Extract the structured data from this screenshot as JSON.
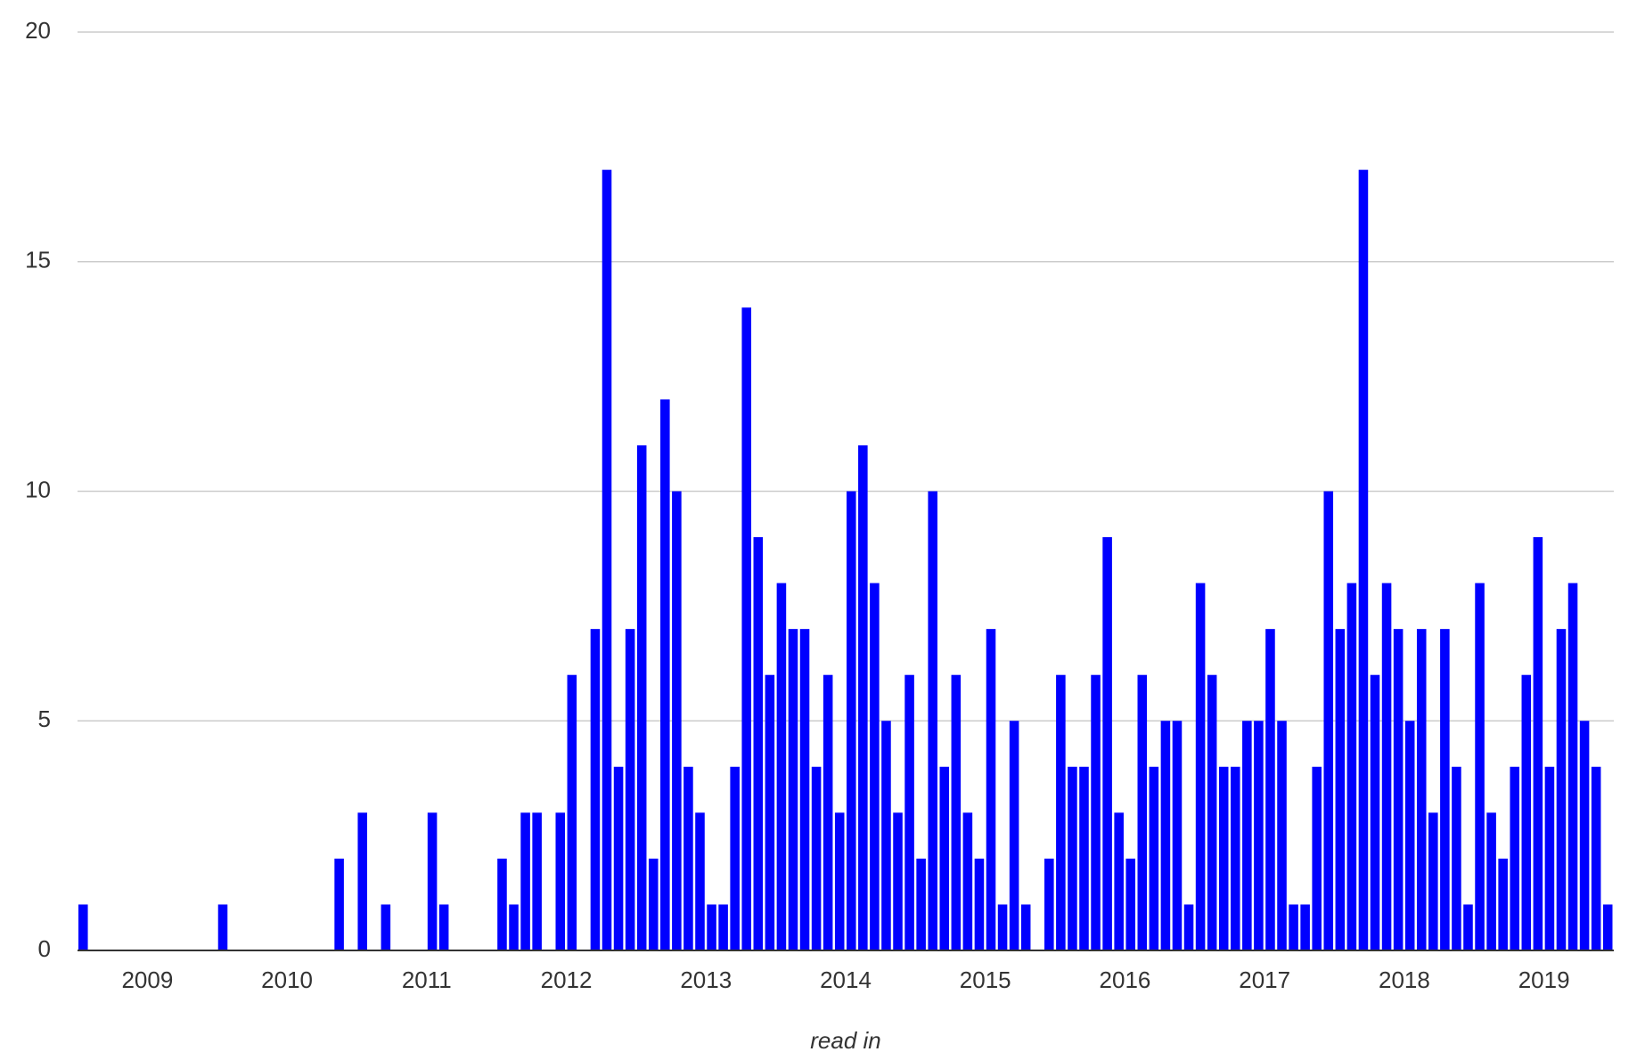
{
  "chart_data": {
    "type": "bar",
    "x_label": "read in",
    "color": "#0000ff",
    "grid": true,
    "categories": [
      null,
      null,
      null,
      null,
      null,
      null,
      null,
      null,
      null,
      null,
      null,
      null,
      null,
      null,
      null,
      null,
      null,
      null,
      null,
      null,
      null,
      null,
      null,
      null,
      null,
      null,
      null,
      null,
      null,
      null,
      null,
      null,
      null,
      null,
      null,
      null,
      null,
      null,
      null,
      null,
      null,
      null,
      null,
      null,
      null,
      null,
      null,
      null,
      null,
      null,
      null,
      null,
      null,
      null,
      null,
      null,
      null,
      null,
      null,
      null,
      null,
      null,
      null,
      null,
      null,
      null,
      null,
      null,
      null,
      null,
      null,
      null,
      null,
      null,
      null,
      null,
      null,
      null,
      null,
      null,
      null,
      null,
      null,
      null,
      null,
      null,
      null,
      null,
      null,
      null,
      null,
      null,
      null,
      null,
      null,
      null,
      null,
      null,
      null,
      null,
      null,
      null,
      null,
      null,
      null,
      null,
      null,
      null,
      null,
      null,
      null,
      null,
      null,
      null,
      null,
      null,
      null,
      null,
      null,
      null,
      null,
      null,
      null,
      null,
      null,
      null,
      null,
      null,
      null,
      null,
      null,
      null
    ],
    "values": [
      1,
      0,
      0,
      0,
      0,
      0,
      0,
      0,
      0,
      0,
      0,
      0,
      1,
      0,
      0,
      0,
      0,
      0,
      0,
      0,
      0,
      0,
      2,
      0,
      3,
      0,
      1,
      0,
      0,
      0,
      3,
      1,
      0,
      0,
      0,
      0,
      2,
      1,
      3,
      3,
      0,
      3,
      6,
      0,
      7,
      17,
      4,
      7,
      11,
      2,
      12,
      10,
      4,
      3,
      1,
      1,
      4,
      14,
      9,
      6,
      8,
      7,
      7,
      4,
      6,
      3,
      10,
      11,
      8,
      5,
      3,
      6,
      2,
      10,
      4,
      6,
      3,
      2,
      7,
      1,
      5,
      1,
      0,
      2,
      6,
      4,
      4,
      6,
      9,
      3,
      2,
      6,
      4,
      5,
      5,
      1,
      8,
      6,
      4,
      4,
      5,
      5,
      7,
      5,
      1,
      1,
      4,
      10,
      7,
      8,
      17,
      6,
      8,
      7,
      5,
      7,
      3,
      7,
      4,
      1,
      8,
      3,
      2,
      4,
      6,
      9,
      4,
      7,
      8,
      5,
      4,
      1
    ],
    "xlim": [
      0,
      132
    ],
    "xticks": [
      {
        "value": 6,
        "label": "2009"
      },
      {
        "value": 18,
        "label": "2010"
      },
      {
        "value": 30,
        "label": "2011"
      },
      {
        "value": 42,
        "label": "2012"
      },
      {
        "value": 54,
        "label": "2013"
      },
      {
        "value": 66,
        "label": "2014"
      },
      {
        "value": 78,
        "label": "2015"
      },
      {
        "value": 90,
        "label": "2016"
      },
      {
        "value": 102,
        "label": "2017"
      },
      {
        "value": 114,
        "label": "2018"
      },
      {
        "value": 126,
        "label": "2019"
      }
    ],
    "ylim": [
      0,
      20
    ],
    "yticks": [
      0,
      5,
      10,
      15,
      20
    ]
  }
}
